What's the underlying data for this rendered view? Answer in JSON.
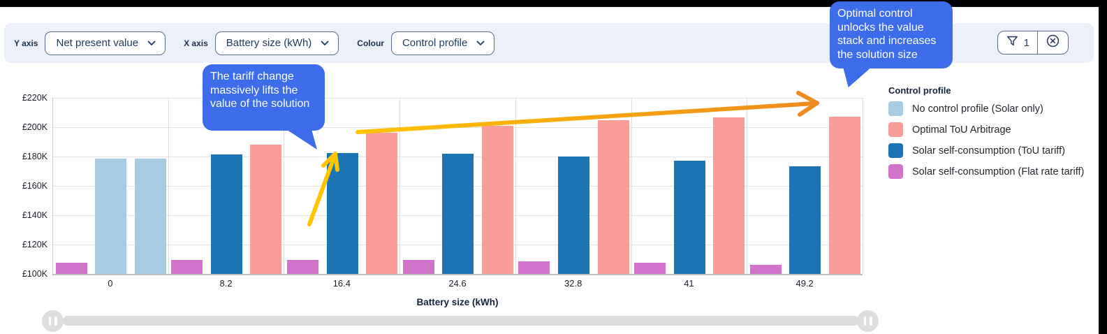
{
  "toolbar": {
    "y_axis_label": "Y axis",
    "y_axis_value": "Net present value",
    "x_axis_label": "X axis",
    "x_axis_value": "Battery size (kWh)",
    "colour_label": "Colour",
    "colour_value": "Control profile",
    "filter_count": "1"
  },
  "chart_data": {
    "type": "bar",
    "title": "",
    "xlabel": "Battery size (kWh)",
    "ylabel": "Net present value",
    "ylim": [
      100000,
      220000
    ],
    "grid": true,
    "legend_position": "right",
    "y_ticks": [
      {
        "label": "£220K",
        "value": 220000
      },
      {
        "label": "£200K",
        "value": 200000
      },
      {
        "label": "£180K",
        "value": 180000
      },
      {
        "label": "£160K",
        "value": 160000
      },
      {
        "label": "£140K",
        "value": 140000
      },
      {
        "label": "£120K",
        "value": 120000
      },
      {
        "label": "£100K",
        "value": 100000
      }
    ],
    "categories": [
      "0",
      "8.2",
      "16.4",
      "24.6",
      "32.8",
      "41",
      "49.2"
    ],
    "series_colors": {
      "No control profile (Solar only)": "#a6cbe3",
      "Optimal ToU Arbitrage": "#f99d98",
      "Solar self-consumption (ToU tariff)": "#1d74b4",
      "Solar self-consumption (Flat rate tariff)": "#d173cb"
    },
    "groups": [
      {
        "category": "0",
        "bars": [
          {
            "series": "Solar self-consumption (Flat rate tariff)",
            "value": 107500
          },
          {
            "series": "No control profile (Solar only)",
            "value": 178500
          },
          {
            "series": "No control profile (Solar only)",
            "value": 178500
          }
        ]
      },
      {
        "category": "8.2",
        "bars": [
          {
            "series": "Solar self-consumption (Flat rate tariff)",
            "value": 109500
          },
          {
            "series": "Solar self-consumption (ToU tariff)",
            "value": 181500
          },
          {
            "series": "Optimal ToU Arbitrage",
            "value": 188000
          }
        ]
      },
      {
        "category": "16.4",
        "bars": [
          {
            "series": "Solar self-consumption (Flat rate tariff)",
            "value": 109500
          },
          {
            "series": "Solar self-consumption (ToU tariff)",
            "value": 182500
          },
          {
            "series": "Optimal ToU Arbitrage",
            "value": 196000
          }
        ]
      },
      {
        "category": "24.6",
        "bars": [
          {
            "series": "Solar self-consumption (Flat rate tariff)",
            "value": 109500
          },
          {
            "series": "Solar self-consumption (ToU tariff)",
            "value": 182000
          },
          {
            "series": "Optimal ToU Arbitrage",
            "value": 201000
          }
        ]
      },
      {
        "category": "32.8",
        "bars": [
          {
            "series": "Solar self-consumption (Flat rate tariff)",
            "value": 108500
          },
          {
            "series": "Solar self-consumption (ToU tariff)",
            "value": 180000
          },
          {
            "series": "Optimal ToU Arbitrage",
            "value": 205000
          }
        ]
      },
      {
        "category": "41",
        "bars": [
          {
            "series": "Solar self-consumption (Flat rate tariff)",
            "value": 107500
          },
          {
            "series": "Solar self-consumption (ToU tariff)",
            "value": 177000
          },
          {
            "series": "Optimal ToU Arbitrage",
            "value": 206500
          }
        ]
      },
      {
        "category": "49.2",
        "bars": [
          {
            "series": "Solar self-consumption (Flat rate tariff)",
            "value": 106000
          },
          {
            "series": "Solar self-consumption (ToU tariff)",
            "value": 173500
          },
          {
            "series": "Optimal ToU Arbitrage",
            "value": 207000
          }
        ]
      }
    ],
    "legend": {
      "title": "Control profile",
      "entries": [
        {
          "label": "No control profile (Solar only)",
          "color": "#a6cbe3"
        },
        {
          "label": "Optimal ToU Arbitrage",
          "color": "#f99d98"
        },
        {
          "label": "Solar self-consumption (ToU tariff)",
          "color": "#1d74b4"
        },
        {
          "label": "Solar self-consumption (Flat rate tariff)",
          "color": "#d173cb"
        }
      ]
    }
  },
  "annotations": {
    "callout_left": "The tariff change massively lifts the value of the solution",
    "callout_top_right": "Optimal control unlocks the value stack and increases the solution size",
    "short_arrow_color": "#ffc400",
    "long_arrow_color_start": "#ffc400",
    "long_arrow_color_end": "#ee8b1e"
  }
}
